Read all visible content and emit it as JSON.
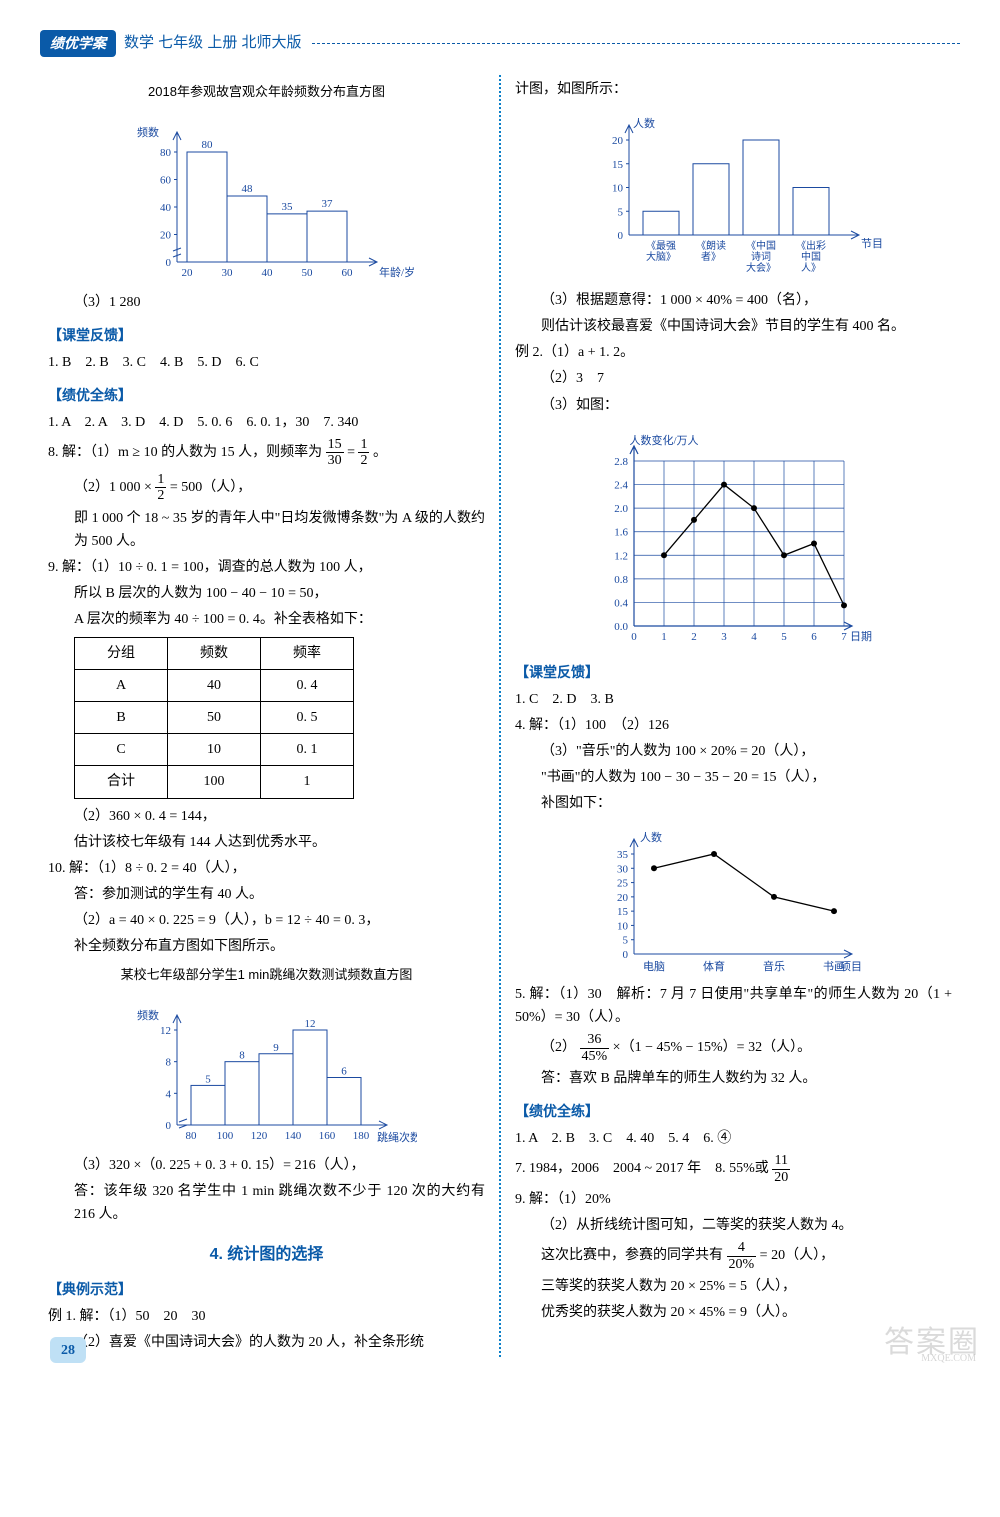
{
  "header": {
    "badge": "绩优学案",
    "text": "数学 七年级 上册 北师大版"
  },
  "page_number": "28",
  "chart_histogram_top": {
    "title": "2018年参观故宫观众年龄频数分布直方图",
    "ylabel": "频数",
    "xlabel": "年龄/岁",
    "edges": [
      20,
      30,
      40,
      50,
      60
    ],
    "values": [
      80,
      48,
      35,
      37
    ],
    "yticks": [
      0,
      20,
      40,
      60,
      80
    ],
    "bar_color": "#ffffff",
    "border_color": "#1b4aa0"
  },
  "left": {
    "note3": "（3）1 280",
    "ketang_title": "【课堂反馈】",
    "ketang_answers": "1. B　2. B　3. C　4. B　5. D　6. C",
    "quanlian_title": "【绩优全练】",
    "ql_line1": "1. A　2. A　3. D　4. D　5. 0. 6　6. 0. 1，30　7. 340",
    "q8a": "8. 解：（1）m ≥ 10 的人数为 15 人，则频率为 ",
    "q8a_frac1_n": "15",
    "q8a_frac1_d": "30",
    "q8a_mid": " = ",
    "q8a_frac2_n": "1",
    "q8a_frac2_d": "2",
    "q8a_end": "。",
    "q8b_pre": "（2）1 000 × ",
    "q8b_frac_n": "1",
    "q8b_frac_d": "2",
    "q8b_post": " = 500（人），",
    "q8c": "即 1 000 个 18 ~ 35 岁的青年人中\"日均发微博条数\"为 A 级的人数约为 500 人。",
    "q9a": "9. 解：（1）10 ÷ 0. 1 = 100，调查的总人数为 100 人，",
    "q9b": "所以 B 层次的人数为 100 − 40 − 10 = 50，",
    "q9c": "A 层次的频率为 40 ÷ 100 = 0. 4。补全表格如下：",
    "freq_table": {
      "headers": [
        "分组",
        "频数",
        "频率"
      ],
      "rows": [
        [
          "A",
          "40",
          "0. 4"
        ],
        [
          "B",
          "50",
          "0. 5"
        ],
        [
          "C",
          "10",
          "0. 1"
        ],
        [
          "合计",
          "100",
          "1"
        ]
      ]
    },
    "q9d": "（2）360 × 0. 4 = 144，",
    "q9e": "估计该校七年级有 144 人达到优秀水平。",
    "q10a": "10. 解：（1）8 ÷ 0. 2 = 40（人），",
    "q10b": "答：参加测试的学生有 40 人。",
    "q10c": "（2）a = 40 × 0. 225 = 9（人），b = 12 ÷ 40 = 0. 3，",
    "q10d": "补全频数分布直方图如下图所示。",
    "chart_histogram_jump": {
      "title": "某校七年级部分学生1 min跳绳次数测试频数直方图",
      "ylabel": "频数",
      "xlabel": "跳绳次数",
      "edges": [
        80,
        100,
        120,
        140,
        160,
        180
      ],
      "values": [
        5,
        8,
        9,
        12,
        6
      ],
      "yticks": [
        0,
        4,
        8,
        12
      ],
      "bar_color": "#ffffff",
      "border_color": "#1b4aa0"
    },
    "q10e": "（3）320 ×（0. 225 + 0. 3 + 0. 15）= 216（人），",
    "q10f": "答：该年级 320 名学生中 1 min 跳绳次数不少于 120 次的大约有 216 人。",
    "section4_title": "4. 统计图的选择",
    "dianli_title": "【典例示范】",
    "ex1a": "例 1. 解：（1）50　20　30",
    "ex1b": "（2）喜爱《中国诗词大会》的人数为 20 人，补全条形统"
  },
  "right": {
    "cont": "计图，如图所示：",
    "chart_bar_shows": {
      "ylabel": "人数",
      "xlabel": "节目",
      "categories": [
        "《最强\\n大脑》",
        "《朗读\\n者》",
        "《中国\\n诗词\\n大会》",
        "《出彩\\n中国\\n人》"
      ],
      "values": [
        5,
        15,
        20,
        10
      ],
      "yticks": [
        0,
        5,
        10,
        15,
        20
      ],
      "bar_color": "#ffffff",
      "border_color": "#1b4aa0"
    },
    "r3a": "（3）根据题意得：1 000 × 40% = 400（名），",
    "r3b": "则估计该校最喜爱《中国诗词大会》节目的学生有 400 名。",
    "ex2a": "例 2.（1）a + 1. 2。",
    "ex2b": "（2）3　7",
    "ex2c": "（3）如图：",
    "chart_line": {
      "ylabel": "人数变化/万人",
      "xlabel": "日期",
      "x": [
        1,
        2,
        3,
        4,
        5,
        6,
        7
      ],
      "y": [
        1.2,
        1.8,
        2.4,
        2.0,
        1.2,
        1.4,
        0.35
      ],
      "xticks": [
        0,
        1,
        2,
        3,
        4,
        5,
        6,
        7
      ],
      "yticks": [
        0,
        0.4,
        0.8,
        1.2,
        1.6,
        2.0,
        2.4,
        2.8
      ],
      "grid_color": "#1b4aa0",
      "line_color": "#000000",
      "marker_color": "#000000"
    },
    "ketang_title": "【课堂反馈】",
    "kt_line1": "1. C　2. D　3. B",
    "q4a": "4. 解：（1）100　（2）126",
    "q4b": "（3）\"音乐\"的人数为 100 × 20% = 20（人），",
    "q4c": "\"书画\"的人数为 100 − 30 − 35 − 20 = 15（人），",
    "q4d": "补图如下：",
    "chart_line2": {
      "ylabel": "人数",
      "xlabel": "项目",
      "categories": [
        "电脑",
        "体育",
        "音乐",
        "书画"
      ],
      "values": [
        30,
        35,
        20,
        15
      ],
      "yticks": [
        0,
        5,
        10,
        15,
        20,
        25,
        30,
        35
      ],
      "border_color": "#1b4aa0",
      "line_color": "#000000"
    },
    "q5a": "5. 解：（1）30　解析：7 月 7 日使用\"共享单车\"的师生人数为 20（1 + 50%）= 30（人）。",
    "q5b_pre": "（2）",
    "q5b_frac_n": "36",
    "q5b_frac_d": "45%",
    "q5b_post": " ×（1 − 45% − 15%）= 32（人）。",
    "q5c": "答：喜欢 B 品牌单车的师生人数约为 32 人。",
    "ql_title": "【绩优全练】",
    "ql_line1": "1. A　2. B　3. C　4. 40　5. 4　6. ④",
    "ql_line2_pre": "7. 1984，2006　2004 ~ 2017 年　8. 55%或",
    "ql_line2_frac_n": "11",
    "ql_line2_frac_d": "20",
    "q9a": "9. 解：（1）20%",
    "q9b": "（2）从折线统计图可知，二等奖的获奖人数为 4。",
    "q9c_pre": "这次比赛中，参赛的同学共有 ",
    "q9c_frac_n": "4",
    "q9c_frac_d": "20%",
    "q9c_post": " = 20（人），",
    "q9d": "三等奖的获奖人数为 20 × 25% = 5（人），",
    "q9e": "优秀奖的获奖人数为 20 × 45% = 9（人）。"
  },
  "watermark": "答案圈",
  "wm_small": "MXQE.COM"
}
